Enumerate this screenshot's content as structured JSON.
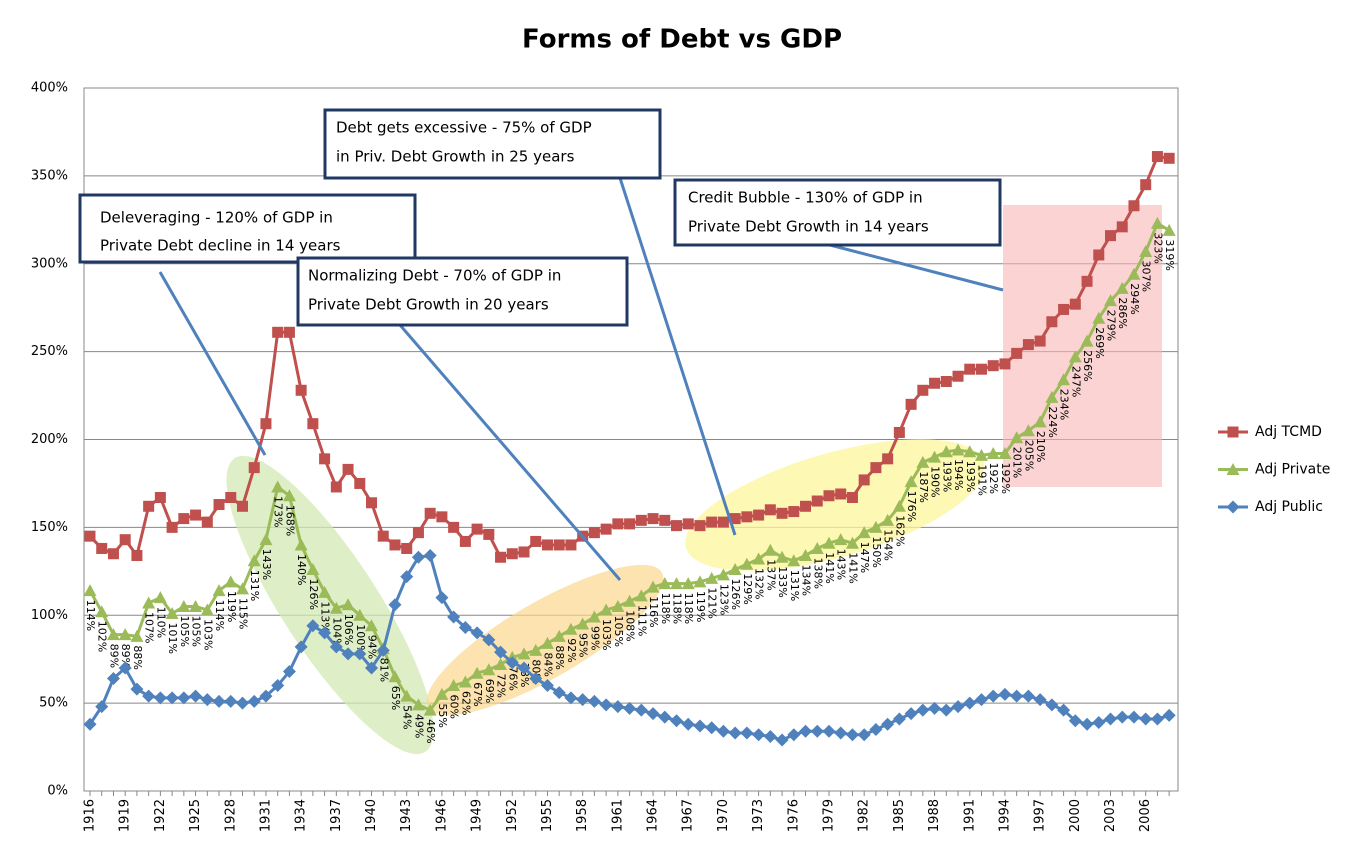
{
  "chart_data": {
    "type": "line",
    "title": "Forms of Debt vs GDP",
    "categories": [
      "1916",
      null,
      null,
      "1919",
      null,
      null,
      "1922",
      null,
      null,
      "1925",
      null,
      null,
      "1928",
      null,
      null,
      "1931",
      null,
      null,
      "1934",
      null,
      null,
      "1937",
      null,
      null,
      "1940",
      null,
      null,
      "1943",
      null,
      null,
      "1946",
      null,
      null,
      "1949",
      null,
      null,
      "1952",
      null,
      null,
      "1955",
      null,
      null,
      "1958",
      null,
      null,
      "1961",
      null,
      null,
      "1964",
      null,
      null,
      "1967",
      null,
      null,
      "1970",
      null,
      null,
      "1973",
      null,
      null,
      "1976",
      null,
      null,
      "1979",
      null,
      null,
      "1982",
      null,
      null,
      "1985",
      null,
      null,
      "1988",
      null,
      null,
      "1991",
      null,
      null,
      "1994",
      null,
      null,
      "1997",
      null,
      null,
      "2000",
      null,
      null,
      "2003",
      null,
      null,
      "2006",
      null,
      null
    ],
    "series": [
      {
        "name": "Adj TCMD",
        "color": "#c0504d",
        "marker": "square",
        "values": [
          145,
          138,
          135,
          143,
          134,
          162,
          167,
          150,
          155,
          157,
          153,
          163,
          167,
          162,
          184,
          209,
          261,
          261,
          228,
          209,
          189,
          173,
          183,
          175,
          164,
          145,
          140,
          138,
          147,
          158,
          156,
          150,
          142,
          149,
          146,
          133,
          135,
          136,
          142,
          140,
          140,
          140,
          145,
          147,
          149,
          152,
          152,
          154,
          155,
          154,
          151,
          152,
          151,
          153,
          153,
          155,
          156,
          157,
          160,
          158,
          159,
          162,
          165,
          168,
          169,
          167,
          177,
          184,
          189,
          204,
          220,
          228,
          232,
          233,
          236,
          240,
          240,
          242,
          243,
          249,
          254,
          256,
          267,
          274,
          277,
          290,
          305,
          316,
          321,
          333,
          345,
          361,
          360
        ]
      },
      {
        "name": "Adj Private",
        "color": "#9bbb59",
        "marker": "triangle",
        "values": [
          114,
          102,
          89,
          89,
          88,
          107,
          110,
          101,
          105,
          105,
          103,
          114,
          119,
          115,
          131,
          143,
          173,
          168,
          140,
          126,
          113,
          104,
          106,
          100,
          94,
          81,
          65,
          54,
          49,
          46,
          55,
          60,
          62,
          67,
          69,
          72,
          76,
          78,
          80,
          84,
          88,
          92,
          95,
          99,
          103,
          105,
          108,
          111,
          116,
          118,
          118,
          118,
          119,
          121,
          123,
          126,
          129,
          132,
          137,
          133,
          131,
          134,
          138,
          141,
          143,
          141,
          147,
          150,
          154,
          162,
          176,
          187,
          190,
          193,
          194,
          193,
          191,
          192,
          192,
          201,
          205,
          210,
          224,
          234,
          247,
          256,
          269,
          279,
          286,
          294,
          307,
          323,
          319
        ],
        "value_labels": [
          "114%",
          "102%",
          "89%",
          "89%",
          "88%",
          "107%",
          "110%",
          "101%",
          "105%",
          "105%",
          "103%",
          "114%",
          "119%",
          "115%",
          "131%",
          "143%",
          "173%",
          "168%",
          "140%",
          "126%",
          "113%",
          "104%",
          "106%",
          "100%",
          "94%",
          "81%",
          "65%",
          "54%",
          "49%",
          "46%",
          "55%",
          "60%",
          "62%",
          "67%",
          "69%",
          "72%",
          "76%",
          "78%",
          "80%",
          "84%",
          "88%",
          "92%",
          "95%",
          "99%",
          "103%",
          "105%",
          "108%",
          "111%",
          "116%",
          "118%",
          "118%",
          "118%",
          "119%",
          "121%",
          "123%",
          "126%",
          "129%",
          "132%",
          "137%",
          "133%",
          "131%",
          "134%",
          "138%",
          "141%",
          "143%",
          "141%",
          "147%",
          "150%",
          "154%",
          "162%",
          "176%",
          "187%",
          "190%",
          "193%",
          "194%",
          "193%",
          "191%",
          "192%",
          "192%",
          "201%",
          "205%",
          "210%",
          "224%",
          "234%",
          "247%",
          "256%",
          "269%",
          "279%",
          "286%",
          "294%",
          "307%",
          "323%",
          "319%"
        ]
      },
      {
        "name": "Adj Public",
        "color": "#4f81bd",
        "marker": "diamond",
        "values": [
          38,
          48,
          64,
          70,
          58,
          54,
          53,
          53,
          53,
          54,
          52,
          51,
          51,
          50,
          51,
          54,
          60,
          68,
          82,
          94,
          90,
          82,
          78,
          78,
          70,
          80,
          106,
          122,
          133,
          134,
          110,
          99,
          93,
          90,
          86,
          79,
          73,
          70,
          64,
          60,
          56,
          53,
          52,
          51,
          49,
          48,
          47,
          46,
          44,
          42,
          40,
          38,
          37,
          36,
          34,
          33,
          33,
          32,
          31,
          29,
          32,
          34,
          34,
          34,
          33,
          32,
          32,
          35,
          38,
          41,
          44,
          46,
          47,
          46,
          48,
          50,
          52,
          54,
          55,
          54,
          54,
          52,
          49,
          46,
          40,
          38,
          39,
          41,
          42,
          42,
          41,
          41,
          43
        ]
      }
    ],
    "ylim": [
      0,
      400
    ],
    "yticks": [
      {
        "value": 0,
        "label": "0%"
      },
      {
        "value": 50,
        "label": "50%"
      },
      {
        "value": 100,
        "label": "100%"
      },
      {
        "value": 150,
        "label": "150%"
      },
      {
        "value": 200,
        "label": "200%"
      },
      {
        "value": 250,
        "label": "250%"
      },
      {
        "value": 300,
        "label": "300%"
      },
      {
        "value": 350,
        "label": "350%"
      },
      {
        "value": 400,
        "label": "400%"
      }
    ],
    "grid": true,
    "legend": "right",
    "annotations": [
      [
        "Deleveraging - 120% of GDP in",
        "Private Debt decline in 14 years"
      ],
      [
        "Normalizing Debt - 70% of GDP in",
        "Private Debt Growth in 20  years"
      ],
      [
        "Debt gets excessive - 75% of GDP",
        "in Priv. Debt Growth in 25 years"
      ],
      [
        "Credit Bubble - 130% of GDP in",
        "Private Debt Growth in 14  years"
      ]
    ]
  }
}
